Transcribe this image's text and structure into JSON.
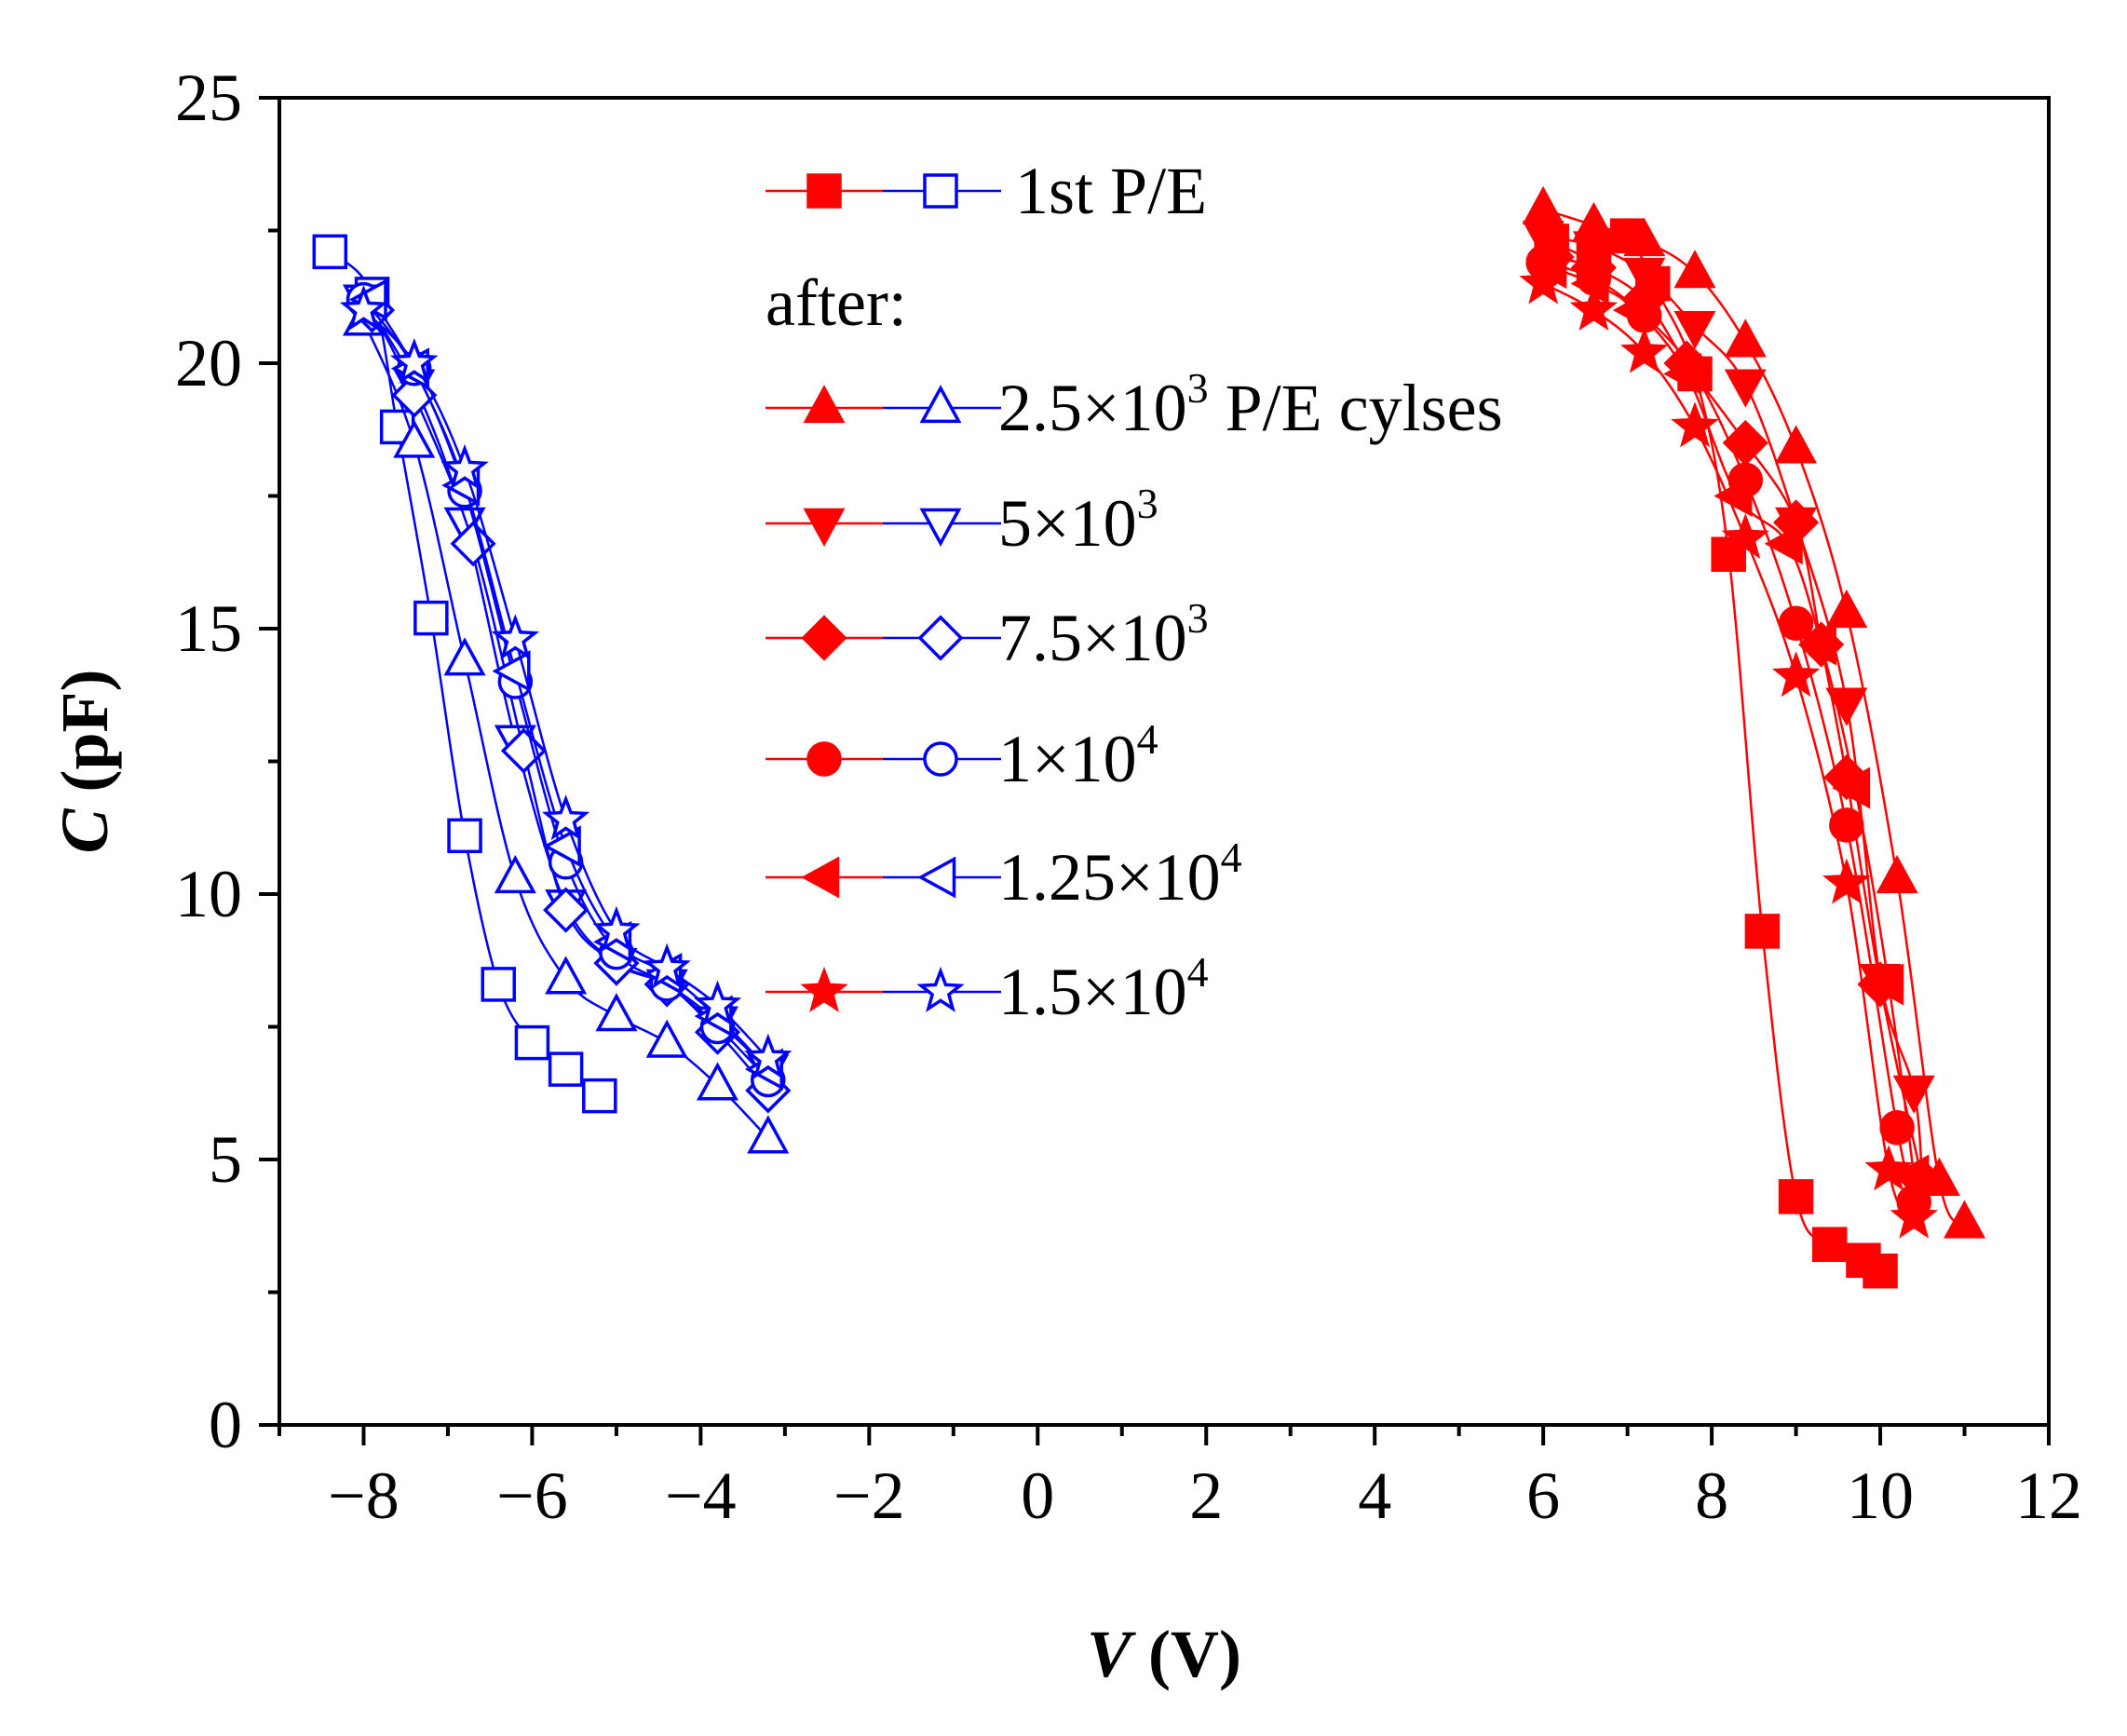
{
  "chart_data": {
    "type": "line",
    "xlabel": {
      "italic": "V",
      "unit": " (V)"
    },
    "ylabel": {
      "italic": "C",
      "unit": " (pF)"
    },
    "xlim": [
      -9,
      12
    ],
    "ylim": [
      0,
      25
    ],
    "x_ticks": [
      -8,
      -6,
      -4,
      -2,
      0,
      2,
      4,
      6,
      8,
      10,
      12
    ],
    "x_tick_labels": [
      "−8",
      "−6",
      "−4",
      "−2",
      "0",
      "2",
      "4",
      "6",
      "8",
      "10",
      "12"
    ],
    "y_ticks": [
      0,
      5,
      10,
      15,
      20,
      25
    ],
    "y_tick_labels": [
      "0",
      "5",
      "10",
      "15",
      "20",
      "25"
    ],
    "colors": {
      "program": "#ff0000",
      "erase": "#0000ff",
      "axis": "#000000"
    },
    "legend": {
      "header": "after:",
      "entries": [
        {
          "marker": "square",
          "base": "1st P/E",
          "sup": "",
          "suffix": ""
        },
        {
          "marker": "triangle-up",
          "base": "2.5×10",
          "sup": "3",
          "suffix": " P/E cylses"
        },
        {
          "marker": "triangle-down",
          "base": "5×10",
          "sup": "3",
          "suffix": ""
        },
        {
          "marker": "diamond",
          "base": "7.5×10",
          "sup": "3",
          "suffix": ""
        },
        {
          "marker": "circle",
          "base": "1×10",
          "sup": "4",
          "suffix": ""
        },
        {
          "marker": "triangle-left",
          "base": "1.25×10",
          "sup": "4",
          "suffix": ""
        },
        {
          "marker": "star",
          "base": "1.5×10",
          "sup": "4",
          "suffix": ""
        }
      ]
    },
    "series": [
      {
        "name": "1st P/E",
        "marker": "square",
        "program": [
          [
            6.1,
            22.3
          ],
          [
            6.6,
            22.0
          ],
          [
            7.0,
            22.4
          ],
          [
            7.3,
            21.5
          ],
          [
            7.8,
            19.8
          ],
          [
            8.2,
            16.4
          ],
          [
            8.6,
            9.3
          ],
          [
            9.0,
            4.3
          ],
          [
            9.4,
            3.4
          ],
          [
            9.8,
            3.1
          ],
          [
            10.0,
            2.9
          ]
        ],
        "erase": [
          [
            -8.4,
            22.1
          ],
          [
            -7.9,
            21.3
          ],
          [
            -7.6,
            18.8
          ],
          [
            -7.2,
            15.2
          ],
          [
            -6.8,
            11.1
          ],
          [
            -6.4,
            8.3
          ],
          [
            -6.0,
            7.2
          ],
          [
            -5.6,
            6.7
          ],
          [
            -5.2,
            6.2
          ]
        ]
      },
      {
        "name": "2.5×10^3 P/E cylses",
        "marker": "triangle-up",
        "program": [
          [
            6.0,
            22.9
          ],
          [
            6.6,
            22.6
          ],
          [
            7.2,
            22.3
          ],
          [
            7.8,
            21.7
          ],
          [
            8.4,
            20.4
          ],
          [
            9.0,
            18.4
          ],
          [
            9.6,
            15.3
          ],
          [
            10.2,
            10.3
          ],
          [
            10.7,
            4.6
          ],
          [
            11.0,
            3.8
          ]
        ],
        "erase": [
          [
            -8.0,
            20.8
          ],
          [
            -7.4,
            18.5
          ],
          [
            -6.8,
            14.4
          ],
          [
            -6.2,
            10.3
          ],
          [
            -5.6,
            8.4
          ],
          [
            -5.0,
            7.7
          ],
          [
            -4.4,
            7.2
          ],
          [
            -3.8,
            6.4
          ],
          [
            -3.2,
            5.4
          ]
        ]
      },
      {
        "name": "5×10^3",
        "marker": "triangle-down",
        "program": [
          [
            6.0,
            22.4
          ],
          [
            6.6,
            22.2
          ],
          [
            7.2,
            21.7
          ],
          [
            7.8,
            20.7
          ],
          [
            8.4,
            19.6
          ],
          [
            9.0,
            17.0
          ],
          [
            9.6,
            13.6
          ],
          [
            10.0,
            8.4
          ],
          [
            10.4,
            6.3
          ],
          [
            10.5,
            4.5
          ]
        ],
        "erase": [
          [
            -8.0,
            21.2
          ],
          [
            -7.4,
            19.6
          ],
          [
            -6.8,
            17.0
          ],
          [
            -6.2,
            12.9
          ],
          [
            -5.6,
            9.8
          ],
          [
            -5.0,
            8.7
          ],
          [
            -4.4,
            8.3
          ],
          [
            -3.8,
            7.6
          ],
          [
            -3.2,
            6.7
          ]
        ]
      },
      {
        "name": "7.5×10^3",
        "marker": "diamond",
        "program": [
          [
            6.1,
            22.0
          ],
          [
            6.6,
            21.8
          ],
          [
            7.2,
            21.2
          ],
          [
            7.7,
            20.0
          ],
          [
            8.4,
            18.5
          ],
          [
            9.0,
            17.0
          ],
          [
            9.3,
            14.7
          ],
          [
            9.6,
            12.2
          ],
          [
            10.0,
            8.3
          ],
          [
            10.5,
            4.6
          ]
        ],
        "erase": [
          [
            -7.9,
            21.0
          ],
          [
            -7.4,
            19.4
          ],
          [
            -6.7,
            16.6
          ],
          [
            -6.1,
            12.7
          ],
          [
            -5.6,
            9.7
          ],
          [
            -5.0,
            8.7
          ],
          [
            -4.4,
            8.3
          ],
          [
            -3.8,
            7.4
          ],
          [
            -3.2,
            6.3
          ]
        ]
      },
      {
        "name": "1×10^4",
        "marker": "circle",
        "program": [
          [
            6.0,
            21.9
          ],
          [
            6.6,
            21.6
          ],
          [
            7.2,
            20.9
          ],
          [
            7.8,
            19.8
          ],
          [
            8.4,
            17.8
          ],
          [
            9.0,
            15.1
          ],
          [
            9.6,
            11.3
          ],
          [
            10.2,
            5.6
          ],
          [
            10.4,
            4.2
          ]
        ],
        "erase": [
          [
            -8.0,
            21.2
          ],
          [
            -7.4,
            19.9
          ],
          [
            -6.8,
            17.6
          ],
          [
            -6.2,
            14.0
          ],
          [
            -5.6,
            10.6
          ],
          [
            -5.0,
            8.9
          ],
          [
            -4.4,
            8.3
          ],
          [
            -3.8,
            7.5
          ],
          [
            -3.2,
            6.5
          ]
        ]
      },
      {
        "name": "1.25×10^4",
        "marker": "triangle-left",
        "program": [
          [
            6.1,
            21.8
          ],
          [
            6.6,
            21.5
          ],
          [
            7.1,
            21.0
          ],
          [
            7.7,
            19.8
          ],
          [
            8.3,
            17.5
          ],
          [
            8.9,
            16.6
          ],
          [
            9.3,
            14.7
          ],
          [
            9.7,
            12.0
          ],
          [
            10.1,
            8.3
          ],
          [
            10.4,
            4.7
          ]
        ],
        "erase": [
          [
            -7.9,
            21.2
          ],
          [
            -7.4,
            19.9
          ],
          [
            -6.8,
            17.7
          ],
          [
            -6.2,
            14.2
          ],
          [
            -5.6,
            10.9
          ],
          [
            -5.0,
            9.1
          ],
          [
            -4.4,
            8.5
          ],
          [
            -3.8,
            7.7
          ],
          [
            -3.2,
            6.7
          ]
        ]
      },
      {
        "name": "1.5×10^4",
        "marker": "star",
        "program": [
          [
            6.0,
            21.5
          ],
          [
            6.6,
            21.0
          ],
          [
            7.2,
            20.2
          ],
          [
            7.8,
            18.8
          ],
          [
            8.4,
            16.7
          ],
          [
            9.0,
            14.1
          ],
          [
            9.6,
            10.2
          ],
          [
            10.1,
            4.8
          ],
          [
            10.4,
            3.9
          ]
        ],
        "erase": [
          [
            -8.0,
            21.0
          ],
          [
            -7.4,
            20.0
          ],
          [
            -6.8,
            18.0
          ],
          [
            -6.2,
            14.8
          ],
          [
            -5.6,
            11.4
          ],
          [
            -5.0,
            9.3
          ],
          [
            -4.4,
            8.6
          ],
          [
            -3.8,
            7.9
          ],
          [
            -3.2,
            6.9
          ]
        ]
      }
    ]
  }
}
